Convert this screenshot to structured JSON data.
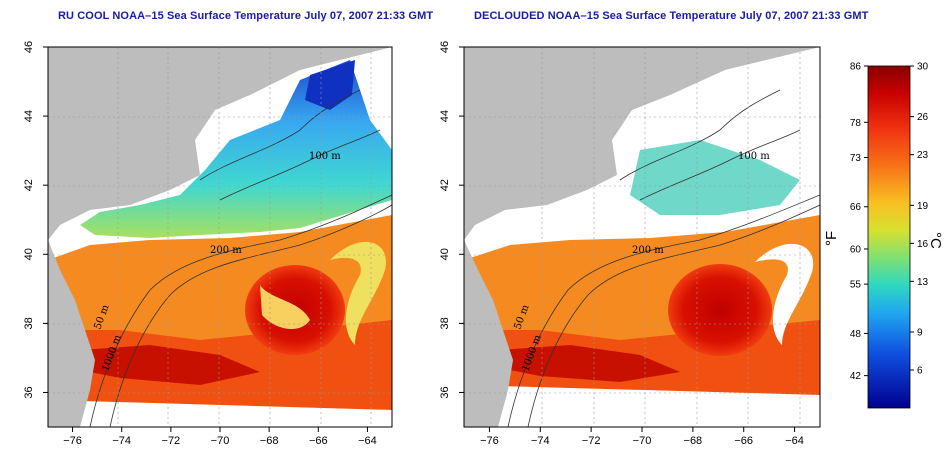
{
  "panels": [
    {
      "id": "left",
      "title": "RU COOL NOAA–15 Sea Surface Temperature July 07, 2007 21:33 GMT",
      "declouded": false
    },
    {
      "id": "right",
      "title": "DECLOUDED NOAA–15 Sea Surface Temperature July 07, 2007 21:33 GMT",
      "declouded": true
    }
  ],
  "axes": {
    "lon_ticks": [
      "−76",
      "−74",
      "−72",
      "−70",
      "−68",
      "−66",
      "−64"
    ],
    "lat_ticks": [
      "36",
      "38",
      "40",
      "42",
      "44",
      "46"
    ],
    "lon_range": [
      -77,
      -63
    ],
    "lat_range": [
      35,
      46
    ]
  },
  "contour_labels": [
    "100 m",
    "200 m",
    "50 m",
    "1000 m"
  ],
  "colorbar": {
    "fahrenheit_ticks": [
      "86",
      "78",
      "73",
      "66",
      "60",
      "55",
      "48",
      "42"
    ],
    "celsius_ticks": [
      "30",
      "26",
      "23",
      "19",
      "16",
      "13",
      "9",
      "6"
    ],
    "unit_f": "°F",
    "unit_c": "°C",
    "range_c": [
      3,
      30
    ]
  },
  "colors": {
    "land": "#bdbdbd",
    "title": "#1a1aa8",
    "warm_deep": "#c00000",
    "warm": "#f04a10",
    "mid": "#f8a020",
    "cool": "#30d0e0",
    "cold": "#1040c0"
  }
}
